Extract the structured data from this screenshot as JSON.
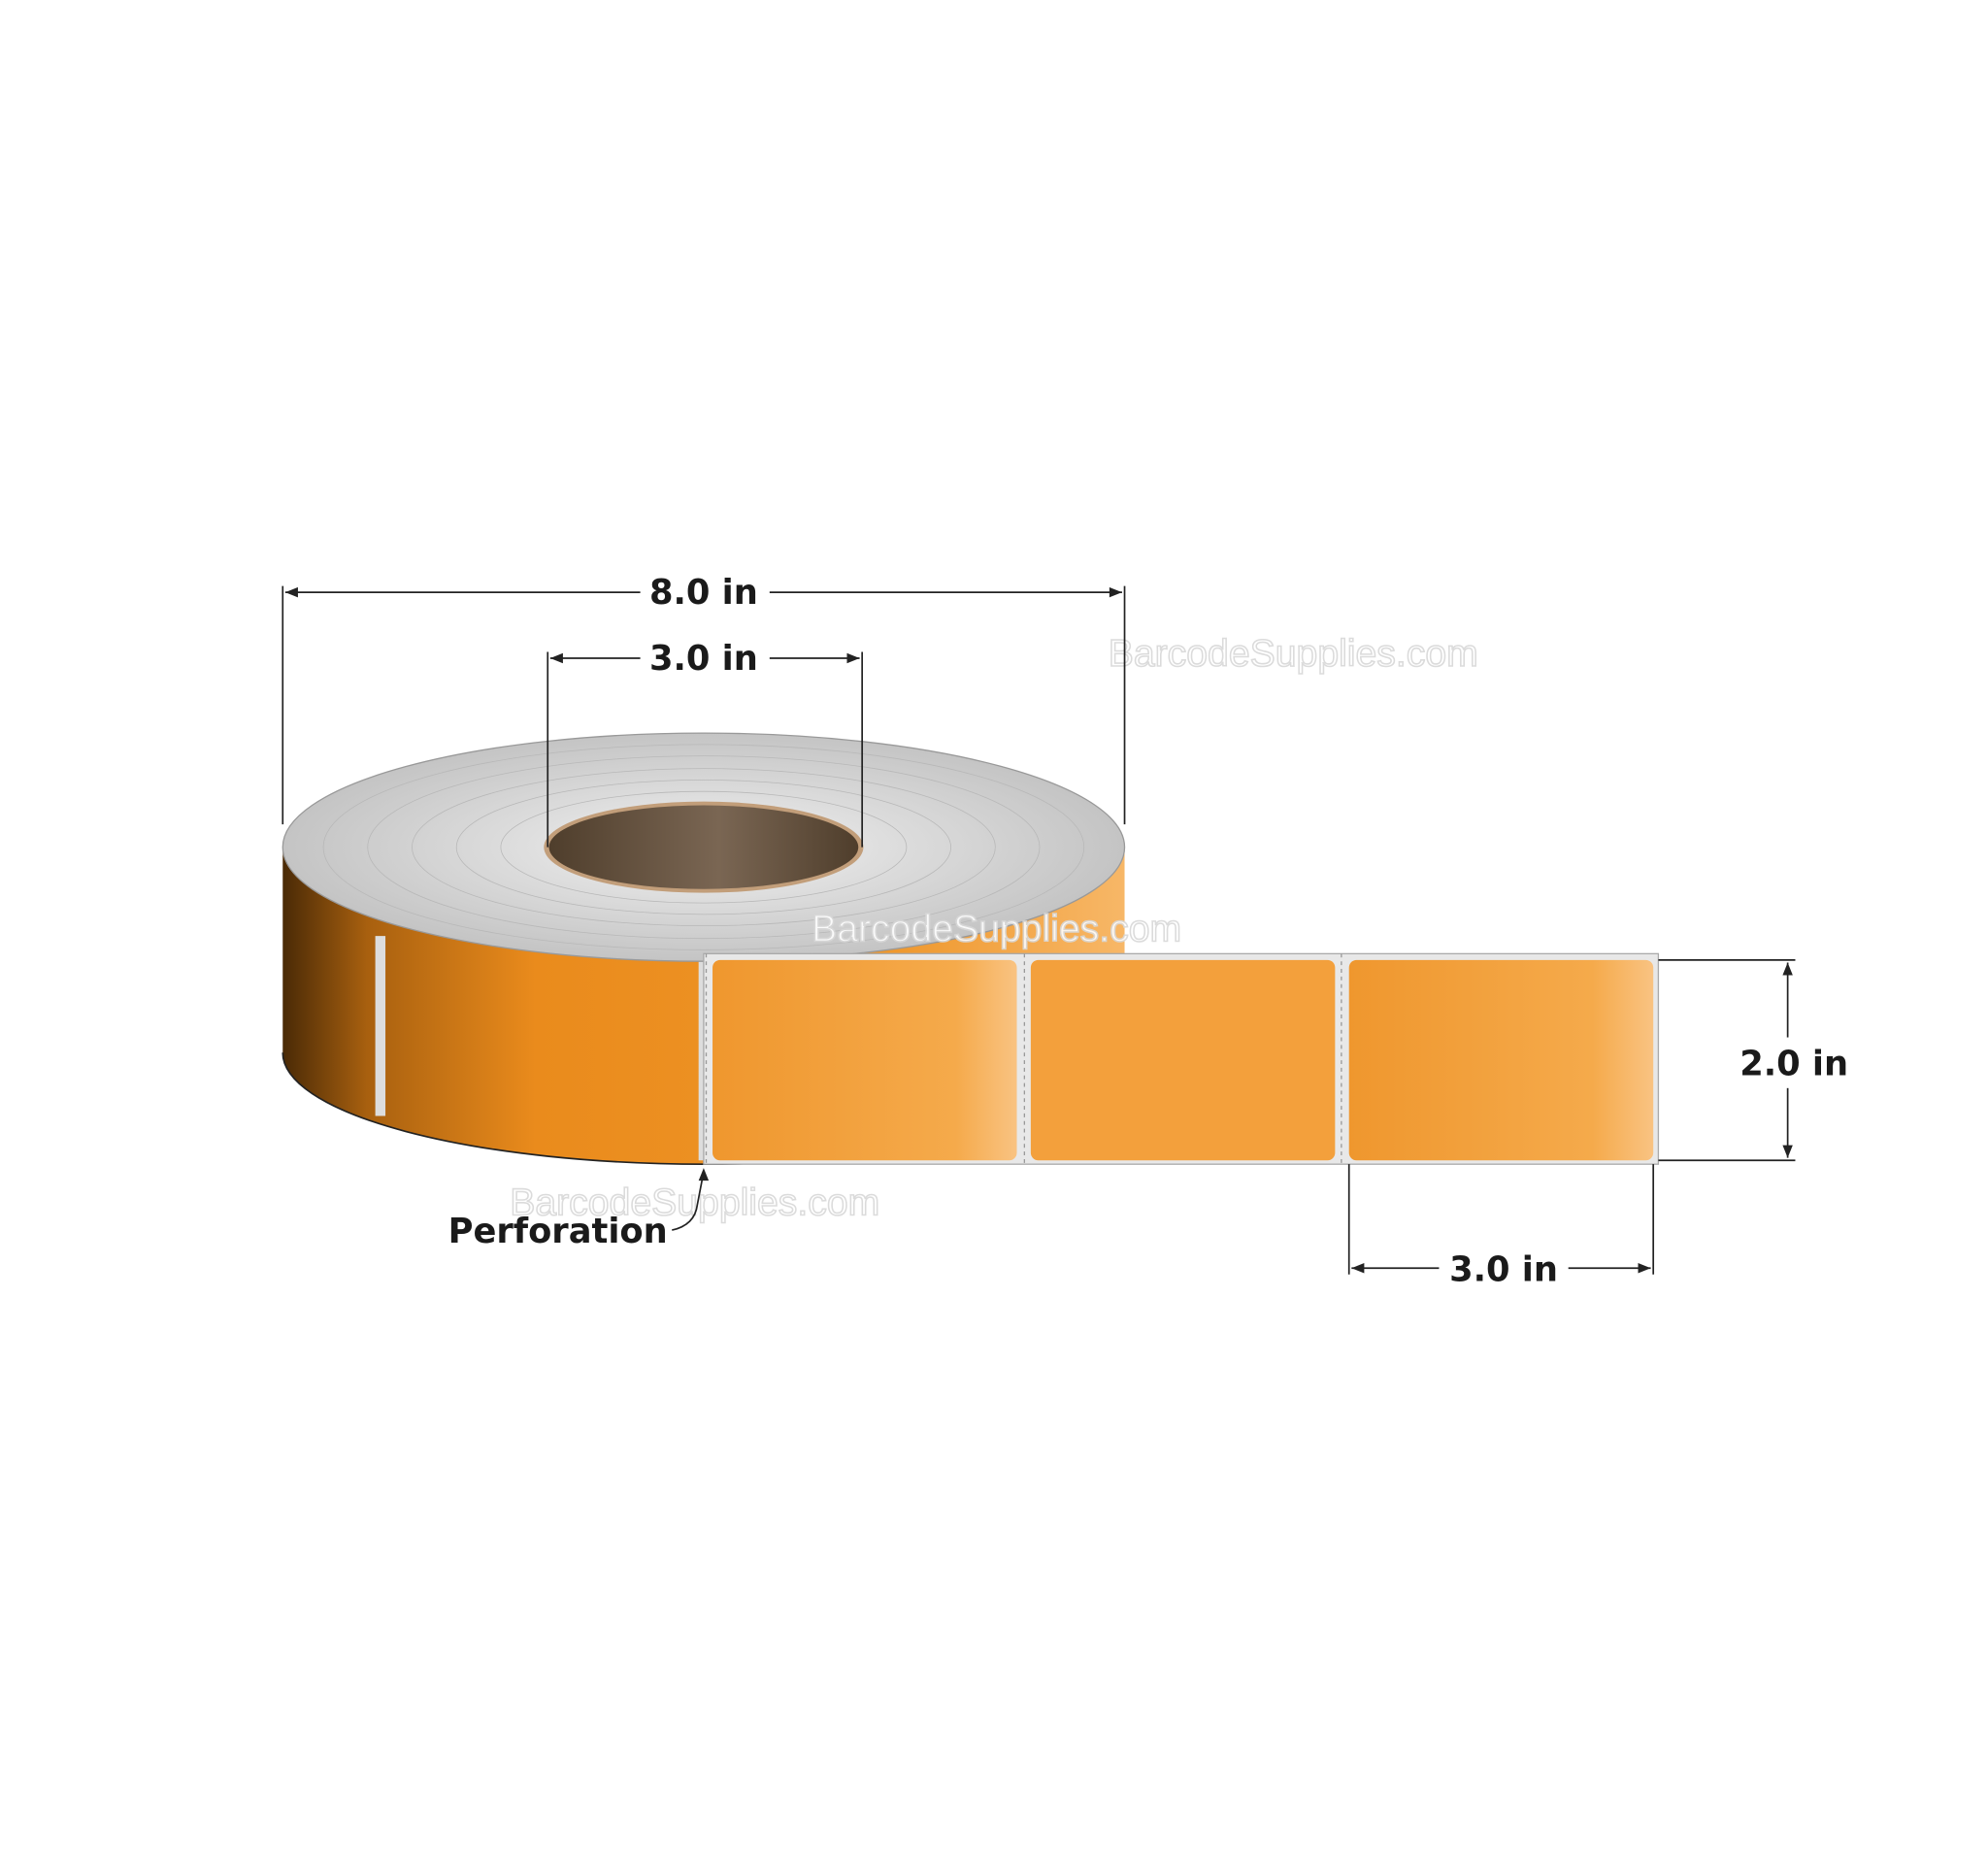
{
  "dimensions": {
    "outer_diameter": "8.0 in",
    "core_diameter": "3.0 in",
    "label_height": "2.0 in",
    "label_width": "3.0 in"
  },
  "callout": {
    "perforation": "Perforation"
  },
  "watermark": "BarcodeSupplies.com",
  "colors": {
    "label": "#f0982f",
    "liner": "#e6e6e6",
    "core": "#6e5a45",
    "roll_top": "#cfcfcf"
  }
}
